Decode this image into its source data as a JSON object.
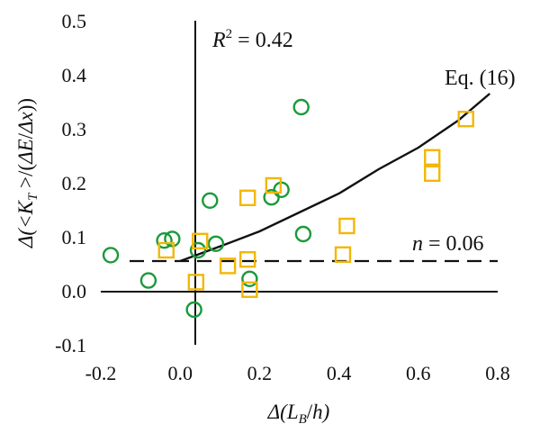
{
  "chart_data": {
    "type": "scatter",
    "xlabel_parts": [
      "Δ(",
      "L",
      "B",
      "/",
      "h",
      ")"
    ],
    "ylabel_parts": [
      "Δ(<",
      "K",
      "T",
      " >/(",
      "ΔE",
      "/",
      "Δx",
      "))"
    ],
    "xlim": [
      -0.2,
      0.8
    ],
    "ylim": [
      -0.1,
      0.5
    ],
    "xticks": [
      -0.2,
      0.0,
      0.2,
      0.4,
      0.6,
      0.8
    ],
    "xtick_labels": [
      "-0.2",
      "0.0",
      "0.2",
      "0.4",
      "0.6",
      "0.8"
    ],
    "yticks": [
      -0.1,
      0.0,
      0.1,
      0.2,
      0.3,
      0.4,
      0.5
    ],
    "ytick_labels": [
      "-0.1",
      "0.0",
      "0.1",
      "0.2",
      "0.3",
      "0.4",
      "0.5"
    ],
    "grid": false,
    "series": [
      {
        "name": "circles",
        "marker": "circle",
        "color": "#1a9a3a",
        "points": [
          [
            -0.175,
            0.066
          ],
          [
            -0.08,
            0.019
          ],
          [
            -0.04,
            0.093
          ],
          [
            -0.02,
            0.096
          ],
          [
            0.035,
            -0.035
          ],
          [
            0.045,
            0.075
          ],
          [
            0.075,
            0.167
          ],
          [
            0.09,
            0.087
          ],
          [
            0.175,
            0.022
          ],
          [
            0.23,
            0.173
          ],
          [
            0.255,
            0.187
          ],
          [
            0.305,
            0.34
          ],
          [
            0.31,
            0.105
          ]
        ]
      },
      {
        "name": "squares",
        "marker": "square",
        "color": "#f2b705",
        "points": [
          [
            -0.035,
            0.075
          ],
          [
            0.04,
            0.016
          ],
          [
            0.05,
            0.092
          ],
          [
            0.12,
            0.046
          ],
          [
            0.17,
            0.172
          ],
          [
            0.17,
            0.058
          ],
          [
            0.175,
            0.002
          ],
          [
            0.235,
            0.195
          ],
          [
            0.41,
            0.067
          ],
          [
            0.42,
            0.12
          ],
          [
            0.635,
            0.247
          ],
          [
            0.635,
            0.217
          ],
          [
            0.72,
            0.318
          ]
        ]
      }
    ],
    "reference_lines": [
      {
        "name": "Eq. (16)",
        "style": "solid",
        "points": [
          [
            0.0,
            0.055
          ],
          [
            0.1,
            0.082
          ],
          [
            0.2,
            0.11
          ],
          [
            0.3,
            0.145
          ],
          [
            0.4,
            0.18
          ],
          [
            0.5,
            0.225
          ],
          [
            0.6,
            0.265
          ],
          [
            0.7,
            0.315
          ],
          [
            0.78,
            0.365
          ]
        ]
      },
      {
        "name": "n = 0.06",
        "style": "dashed",
        "y": 0.055,
        "x_range": [
          -0.2,
          0.8
        ]
      }
    ],
    "annotations": {
      "r2_symbol": "R",
      "r2_exp": "2",
      "r2_value": " = 0.42",
      "eq_label": "Eq. (16)",
      "n_symbol": "n",
      "n_value": " = 0.06"
    }
  }
}
